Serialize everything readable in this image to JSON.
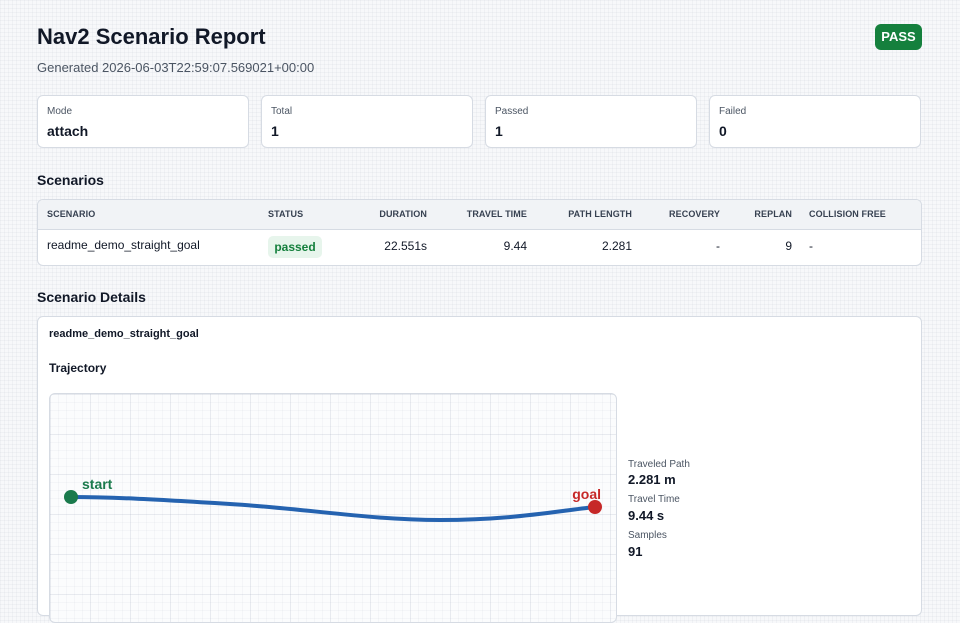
{
  "header": {
    "title": "Nav2 Scenario Report",
    "generated": "Generated 2026-06-03T22:59:07.569021+00:00",
    "badge": "PASS"
  },
  "summary": [
    {
      "label": "Mode",
      "value": "attach"
    },
    {
      "label": "Total",
      "value": "1"
    },
    {
      "label": "Passed",
      "value": "1"
    },
    {
      "label": "Failed",
      "value": "0"
    }
  ],
  "scenarios": {
    "heading": "Scenarios",
    "columns": [
      "SCENARIO",
      "STATUS",
      "DURATION",
      "TRAVEL TIME",
      "PATH LENGTH",
      "RECOVERY",
      "REPLAN",
      "COLLISION FREE"
    ],
    "rows": [
      {
        "scenario": "readme_demo_straight_goal",
        "status": "passed",
        "duration": "22.551s",
        "travel_time": "9.44",
        "path_length": "2.281",
        "recovery": "-",
        "replan": "9",
        "collision_free": "-"
      }
    ]
  },
  "details": {
    "heading": "Scenario Details",
    "scenario_name": "readme_demo_straight_goal",
    "trajectory_title": "Trajectory",
    "start_label": "start",
    "goal_label": "goal",
    "colors": {
      "start": "#1a7a4c",
      "goal": "#c62828",
      "path": "#2563b0"
    },
    "metrics": [
      {
        "label": "Traveled Path",
        "value": "2.281 m"
      },
      {
        "label": "Travel Time",
        "value": "9.44 s"
      },
      {
        "label": "Samples",
        "value": "91"
      }
    ]
  }
}
